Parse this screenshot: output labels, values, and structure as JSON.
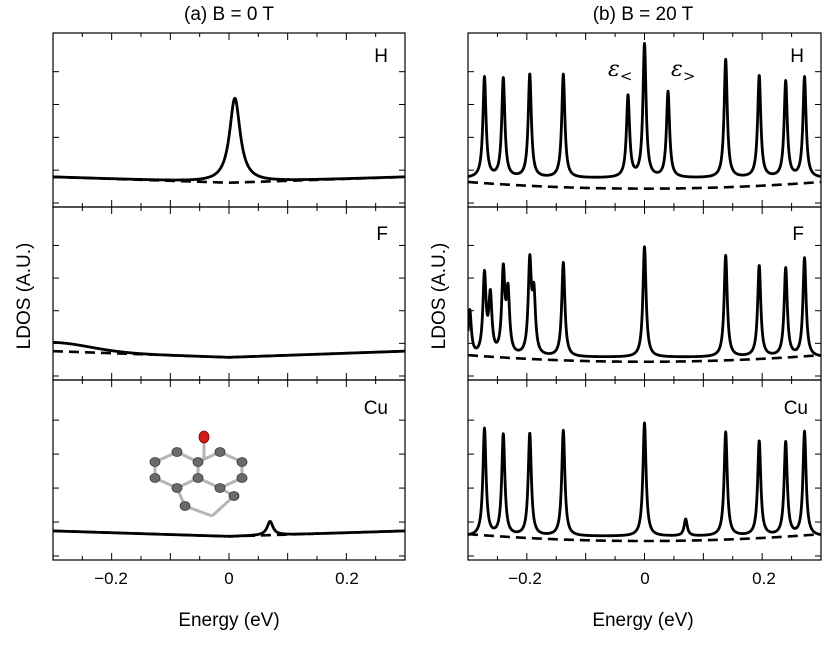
{
  "figure": {
    "ylabel": "LDOS (A.U.)",
    "xlabel": "Energy (eV)"
  },
  "chart_data": [
    {
      "type": "line",
      "id": "left",
      "title": "(a) B = 0 T",
      "xlabel": "Energy (eV)",
      "ylabel": "LDOS (A.U.)",
      "xlim": [
        -0.3,
        0.3
      ],
      "xticks": [
        -0.2,
        0,
        0.2
      ],
      "xtick_labels": [
        "−0.2",
        "0",
        "0.2"
      ],
      "panels": [
        {
          "label": "H",
          "ylim": [
            0,
            1
          ],
          "solid": {
            "base": 0.07,
            "slope": 0.13,
            "peaks": [
              {
                "e0": 0.01,
                "gamma": 0.011,
                "amp": 0.57
              }
            ]
          },
          "dashed": {
            "base": 0.07,
            "slope": 0.13
          }
        },
        {
          "label": "F",
          "ylim": [
            0,
            1
          ],
          "solid": {
            "base": 0.06,
            "slope": 0.14,
            "bump": {
              "amp": 0.06,
              "center": -0.3,
              "width": 0.09
            }
          },
          "dashed": {
            "base": 0.06,
            "slope": 0.14
          }
        },
        {
          "label": "Cu",
          "ylim": [
            0,
            1
          ],
          "solid": {
            "base": 0.06,
            "slope": 0.12,
            "peaks": [
              {
                "e0": 0.07,
                "gamma": 0.006,
                "amp": 0.09
              }
            ]
          },
          "dashed": {
            "base": 0.06,
            "slope": 0.12
          },
          "inset": "adsorbate-molecule"
        }
      ]
    },
    {
      "type": "line",
      "id": "right",
      "title": "(b) B = 20 T",
      "xlabel": "Energy (eV)",
      "ylabel": "LDOS (A.U.)",
      "xlim": [
        -0.3,
        0.3
      ],
      "xticks": [
        -0.2,
        0,
        0.2
      ],
      "xtick_labels": [
        "−0.2",
        "0",
        "0.2"
      ],
      "annotations": {
        "eps_lt": "ε",
        "eps_lt_sub": "<",
        "eps_gt": "ε",
        "eps_gt_sub": ">"
      },
      "panels": [
        {
          "label": "H",
          "ylim": [
            0,
            1
          ],
          "solid": {
            "floor": 0.1,
            "gamma": 0.0032,
            "peaks": [
              {
                "e0": -0.272,
                "top": 0.78
              },
              {
                "e0": -0.24,
                "top": 0.77
              },
              {
                "e0": -0.195,
                "top": 0.8
              },
              {
                "e0": -0.138,
                "top": 0.8
              },
              {
                "e0": -0.028,
                "top": 0.65
              },
              {
                "e0": 0.0,
                "top": 1.0
              },
              {
                "e0": 0.04,
                "top": 0.68
              },
              {
                "e0": 0.138,
                "top": 0.9
              },
              {
                "e0": 0.195,
                "top": 0.79
              },
              {
                "e0": 0.24,
                "top": 0.75
              },
              {
                "e0": 0.272,
                "top": 0.78
              }
            ]
          },
          "dashed": {
            "base": 0.03,
            "slope": 0.5
          }
        },
        {
          "label": "F",
          "ylim": [
            0,
            1
          ],
          "solid": {
            "floor": 0.06,
            "gamma": 0.0032,
            "peaks": [
              {
                "e0": -0.297,
                "top": 0.37
              },
              {
                "e0": -0.272,
                "top": 0.6
              },
              {
                "e0": -0.262,
                "top": 0.45
              },
              {
                "e0": -0.24,
                "top": 0.62
              },
              {
                "e0": -0.232,
                "top": 0.47
              },
              {
                "e0": -0.195,
                "top": 0.68
              },
              {
                "e0": -0.188,
                "top": 0.45
              },
              {
                "e0": -0.138,
                "top": 0.7
              },
              {
                "e0": 0.0,
                "top": 0.81
              },
              {
                "e0": 0.138,
                "top": 0.75
              },
              {
                "e0": 0.195,
                "top": 0.68
              },
              {
                "e0": 0.24,
                "top": 0.66
              },
              {
                "e0": 0.272,
                "top": 0.73
              }
            ]
          },
          "dashed": {
            "base": 0.03,
            "slope": 0.5
          }
        },
        {
          "label": "Cu",
          "ylim": [
            0,
            1
          ],
          "solid": {
            "floor": 0.06,
            "gamma": 0.0032,
            "peaks": [
              {
                "e0": -0.272,
                "top": 0.76
              },
              {
                "e0": -0.24,
                "top": 0.72
              },
              {
                "e0": -0.195,
                "top": 0.73
              },
              {
                "e0": -0.138,
                "top": 0.75
              },
              {
                "e0": 0.0,
                "top": 0.8
              },
              {
                "e0": 0.07,
                "top": 0.17
              },
              {
                "e0": 0.138,
                "top": 0.74
              },
              {
                "e0": 0.195,
                "top": 0.68
              },
              {
                "e0": 0.24,
                "top": 0.67
              },
              {
                "e0": 0.272,
                "top": 0.74
              }
            ]
          },
          "dashed": {
            "base": 0.03,
            "slope": 0.5
          }
        }
      ]
    }
  ]
}
